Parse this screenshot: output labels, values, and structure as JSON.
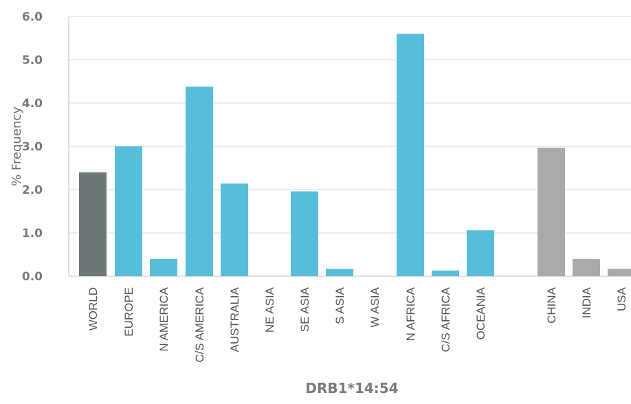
{
  "chart_data": {
    "type": "bar",
    "title": "",
    "xlabel": "DRB1*14:54",
    "ylabel": "% Frequency",
    "ylim": [
      0,
      6
    ],
    "yticks": [
      "0.0",
      "1.0",
      "2.0",
      "3.0",
      "4.0",
      "5.0",
      "6.0"
    ],
    "grid": true,
    "categories": [
      "WORLD",
      "EUROPE",
      "N AMERICA",
      "C/S AMERICA",
      "AUSTRALIA",
      "NE ASIA",
      "SE ASIA",
      "S ASIA",
      "W ASIA",
      "N AFRICA",
      "C/S AFRICA",
      "OCEANIA",
      "CHINA",
      "INDIA",
      "USA"
    ],
    "values": [
      2.4,
      3.0,
      0.4,
      4.38,
      2.14,
      0.0,
      1.96,
      0.17,
      0.0,
      5.6,
      0.13,
      1.06,
      2.97,
      0.4,
      0.17
    ],
    "groups": [
      "world",
      "region",
      "region",
      "region",
      "region",
      "region",
      "region",
      "region",
      "region",
      "region",
      "region",
      "region",
      "country",
      "country",
      "country"
    ],
    "colors": {
      "world": "#6f7677",
      "region": "#56bedb",
      "country": "#aaaaaa"
    }
  }
}
